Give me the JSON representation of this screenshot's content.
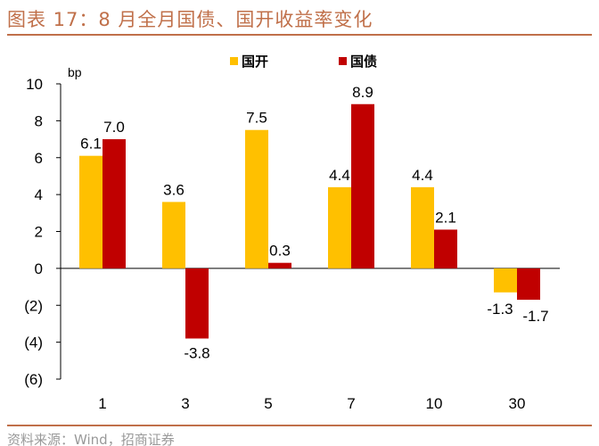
{
  "title": "图表 17：8 月全月国债、国开收益率变化",
  "source": "资料来源：Wind，招商证券",
  "chart_data": {
    "type": "bar",
    "title": "图表 17：8 月全月国债、国开收益率变化",
    "ylabel": "bp",
    "xlabel": "",
    "categories": [
      "1",
      "3",
      "5",
      "7",
      "10",
      "30"
    ],
    "series": [
      {
        "name": "国开",
        "color": "#FFC000",
        "values": [
          6.1,
          3.6,
          7.5,
          4.4,
          4.4,
          -1.3
        ]
      },
      {
        "name": "国债",
        "color": "#C00000",
        "values": [
          7.0,
          -3.8,
          0.3,
          8.9,
          2.1,
          -1.7
        ]
      }
    ],
    "ylim": [
      -6,
      10
    ],
    "yticks": [
      10,
      8,
      6,
      4,
      2,
      0,
      -2,
      -4,
      -6
    ],
    "ytick_labels": [
      "10",
      "8",
      "6",
      "4",
      "2",
      "0",
      "(2)",
      "(4)",
      "(6)"
    ],
    "data_labels": [
      [
        "6.1",
        "3.6",
        "7.5",
        "4.4",
        "4.4",
        "-1.3"
      ],
      [
        "7.0",
        "-3.8",
        "0.3",
        "8.9",
        "2.1",
        "-1.7"
      ]
    ],
    "grid": false,
    "legend": "top-center"
  }
}
